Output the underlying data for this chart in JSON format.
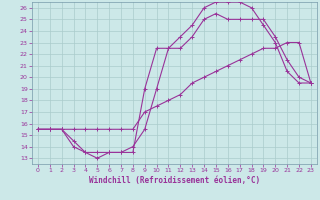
{
  "xlabel": "Windchill (Refroidissement éolien,°C)",
  "bg_color": "#cce8e8",
  "grid_color": "#aacccc",
  "line_color": "#993399",
  "spine_color": "#7799aa",
  "xlim": [
    -0.5,
    23.5
  ],
  "ylim": [
    12.5,
    26.5
  ],
  "xticks": [
    0,
    1,
    2,
    3,
    4,
    5,
    6,
    7,
    8,
    9,
    10,
    11,
    12,
    13,
    14,
    15,
    16,
    17,
    18,
    19,
    20,
    21,
    22,
    23
  ],
  "yticks": [
    13,
    14,
    15,
    16,
    17,
    18,
    19,
    20,
    21,
    22,
    23,
    24,
    25,
    26
  ],
  "line1_x": [
    0,
    1,
    2,
    3,
    4,
    5,
    6,
    7,
    8,
    9,
    10,
    11,
    12,
    13,
    14,
    15,
    16,
    17,
    18,
    19,
    20,
    21,
    22,
    23
  ],
  "line1_y": [
    15.5,
    15.5,
    15.5,
    14.0,
    13.5,
    13.0,
    13.5,
    13.5,
    14.0,
    15.5,
    19.0,
    22.5,
    23.5,
    24.5,
    26.0,
    26.5,
    26.5,
    26.5,
    26.0,
    24.5,
    23.0,
    20.5,
    19.5,
    19.5
  ],
  "line2_x": [
    0,
    1,
    2,
    3,
    4,
    5,
    6,
    7,
    8,
    9,
    10,
    11,
    12,
    13,
    14,
    15,
    16,
    17,
    18,
    19,
    20,
    21,
    22,
    23
  ],
  "line2_y": [
    15.5,
    15.5,
    15.5,
    14.5,
    13.5,
    13.5,
    13.5,
    13.5,
    13.5,
    19.0,
    22.5,
    22.5,
    22.5,
    23.5,
    25.0,
    25.5,
    25.0,
    25.0,
    25.0,
    25.0,
    23.5,
    21.5,
    20.0,
    19.5
  ],
  "line3_x": [
    0,
    1,
    2,
    3,
    4,
    5,
    6,
    7,
    8,
    9,
    10,
    11,
    12,
    13,
    14,
    15,
    16,
    17,
    18,
    19,
    20,
    21,
    22,
    23
  ],
  "line3_y": [
    15.5,
    15.5,
    15.5,
    15.5,
    15.5,
    15.5,
    15.5,
    15.5,
    15.5,
    17.0,
    17.5,
    18.0,
    18.5,
    19.5,
    20.0,
    20.5,
    21.0,
    21.5,
    22.0,
    22.5,
    22.5,
    23.0,
    23.0,
    19.5
  ]
}
